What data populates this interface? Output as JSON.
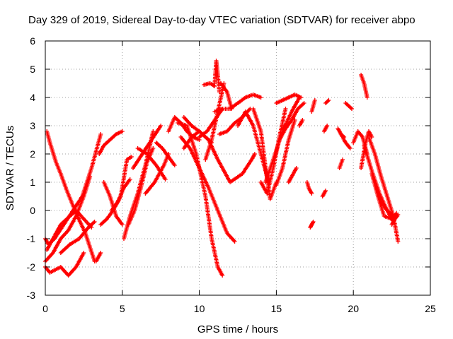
{
  "chart_data": {
    "type": "scatter",
    "title": "Day 329 of 2019, Sidereal Day-to-day VTEC variation (SDTVAR) for receiver abpo",
    "xlabel": "GPS time / hours",
    "ylabel": "SDTVAR / TECUs",
    "xlim": [
      0,
      25
    ],
    "ylim": [
      -3,
      6
    ],
    "xticks": [
      "0",
      "5",
      "10",
      "15",
      "20",
      "25"
    ],
    "yticks": [
      "-3",
      "-2",
      "-1",
      "0",
      "1",
      "2",
      "3",
      "4",
      "5",
      "6"
    ],
    "grid": true,
    "marker": "+",
    "color": "#ff0000",
    "tracks": [
      {
        "x": [
          0.1,
          0.3,
          0.7,
          1.0,
          1.4,
          2.0,
          2.6,
          3.2
        ],
        "y": [
          2.8,
          2.4,
          1.7,
          1.3,
          0.7,
          -0.1,
          -0.8,
          -1.8
        ]
      },
      {
        "x": [
          0.0,
          0.2,
          0.6,
          1.2,
          1.8,
          2.4,
          3.0,
          3.5,
          3.6
        ],
        "y": [
          -1.0,
          -1.2,
          -1.0,
          -0.5,
          0.0,
          0.5,
          1.5,
          2.5,
          2.7
        ]
      },
      {
        "x": [
          0.0,
          0.5,
          1.0,
          1.5,
          2.0,
          2.5,
          2.9
        ],
        "y": [
          -1.8,
          -1.5,
          -1.0,
          -0.7,
          -0.2,
          0.5,
          1.2
        ]
      },
      {
        "x": [
          0.0,
          0.3,
          1.0,
          1.5,
          2.0,
          2.5
        ],
        "y": [
          -2.0,
          -2.2,
          -2.0,
          -2.3,
          -2.0,
          -1.5
        ]
      },
      {
        "x": [
          0.1,
          0.5,
          1.0,
          2.0,
          3.0
        ],
        "y": [
          -1.4,
          -1.0,
          -0.5,
          0.0,
          -0.6
        ]
      },
      {
        "x": [
          3.3,
          3.6
        ],
        "y": [
          -1.8,
          -1.5
        ]
      },
      {
        "x": [
          1.0,
          1.6,
          2.2,
          2.8,
          3.2
        ],
        "y": [
          -1.5,
          -1.2,
          -1.0,
          -0.6,
          -0.4
        ]
      },
      {
        "x": [
          3.5,
          3.8,
          4.2,
          4.6,
          5.0
        ],
        "y": [
          2.0,
          2.3,
          2.5,
          2.7,
          2.8
        ]
      },
      {
        "x": [
          3.6,
          4.0,
          4.4,
          4.9,
          5.3,
          5.6
        ],
        "y": [
          -0.5,
          -0.3,
          0.0,
          0.5,
          1.8,
          1.9
        ]
      },
      {
        "x": [
          3.8,
          4.2,
          4.6,
          5.0
        ],
        "y": [
          1.0,
          0.5,
          -0.2,
          -0.5
        ]
      },
      {
        "x": [
          4.3,
          4.7,
          5.1,
          5.5
        ],
        "y": [
          0.0,
          0.3,
          0.8,
          1.1
        ]
      },
      {
        "x": [
          5.1,
          5.5,
          6.0,
          6.5,
          7.0
        ],
        "y": [
          -1.0,
          -0.2,
          0.6,
          1.6,
          2.8
        ]
      },
      {
        "x": [
          5.4,
          5.8,
          6.2,
          6.6,
          7.0
        ],
        "y": [
          -0.5,
          0.0,
          0.8,
          1.7,
          2.2
        ]
      },
      {
        "x": [
          5.7,
          6.3,
          6.9,
          7.5
        ],
        "y": [
          1.5,
          2.0,
          2.5,
          3.0
        ]
      },
      {
        "x": [
          6.0,
          6.6,
          7.2,
          7.8
        ],
        "y": [
          2.2,
          2.0,
          1.6,
          1.1
        ]
      },
      {
        "x": [
          6.5,
          7.1,
          7.7,
          8.0
        ],
        "y": [
          0.6,
          1.0,
          1.6,
          2.0
        ]
      },
      {
        "x": [
          7.2,
          7.6,
          8.0,
          8.4
        ],
        "y": [
          2.4,
          2.2,
          1.9,
          1.6
        ]
      },
      {
        "x": [
          8.0,
          8.4,
          8.8,
          9.2,
          9.6,
          10.0
        ],
        "y": [
          2.8,
          3.3,
          3.1,
          2.8,
          2.6,
          2.5
        ]
      },
      {
        "x": [
          8.6,
          9.2,
          9.8,
          10.4,
          10.8,
          11.2,
          11.5
        ],
        "y": [
          3.1,
          3.0,
          2.0,
          0.5,
          -1.0,
          -2.0,
          -2.3
        ]
      },
      {
        "x": [
          8.8,
          9.4,
          10.0,
          10.6,
          11.2,
          11.8,
          12.3
        ],
        "y": [
          2.6,
          2.2,
          1.5,
          0.8,
          0.0,
          -0.8,
          -1.1
        ]
      },
      {
        "x": [
          9.0,
          9.5,
          10.0,
          10.4,
          10.8
        ],
        "y": [
          3.3,
          3.0,
          2.8,
          2.6,
          2.4
        ]
      },
      {
        "x": [
          9.0,
          9.5,
          10.0,
          10.6,
          11.2,
          12.0,
          12.8,
          13.4,
          13.6
        ],
        "y": [
          2.2,
          2.6,
          2.8,
          2.5,
          1.8,
          1.0,
          1.3,
          1.8,
          2.0
        ]
      },
      {
        "x": [
          10.0,
          10.5,
          11.0,
          11.5
        ],
        "y": [
          2.6,
          2.8,
          3.2,
          3.6
        ]
      },
      {
        "x": [
          10.4,
          10.8,
          11.2,
          11.6
        ],
        "y": [
          1.8,
          2.5,
          3.5,
          4.5
        ]
      },
      {
        "x": [
          10.3,
          10.7,
          11.0
        ],
        "y": [
          4.45,
          4.5,
          4.4
        ]
      },
      {
        "x": [
          11.0,
          11.1,
          11.2,
          11.3
        ],
        "y": [
          4.5,
          5.3,
          4.8,
          4.2
        ]
      },
      {
        "x": [
          11.4,
          11.8,
          12.1
        ],
        "y": [
          4.5,
          4.2,
          3.6
        ]
      },
      {
        "x": [
          11.0,
          11.5,
          12.0,
          12.5,
          13.0,
          13.5,
          14.0
        ],
        "y": [
          3.5,
          3.6,
          3.6,
          3.8,
          4.0,
          4.1,
          4.0
        ]
      },
      {
        "x": [
          11.3,
          11.8,
          12.3,
          12.8,
          13.3
        ],
        "y": [
          2.7,
          2.8,
          3.1,
          3.3,
          3.6
        ]
      },
      {
        "x": [
          12.5,
          13.0,
          13.5,
          14.0,
          14.5
        ],
        "y": [
          3.0,
          3.5,
          3.0,
          2.0,
          1.0
        ]
      },
      {
        "x": [
          13.5,
          14.0,
          14.3,
          14.6,
          15.0
        ],
        "y": [
          3.6,
          2.8,
          1.5,
          0.4,
          1.0
        ]
      },
      {
        "x": [
          14.0,
          14.4,
          14.8,
          15.2,
          15.6
        ],
        "y": [
          1.0,
          0.6,
          1.5,
          2.6,
          3.6
        ]
      },
      {
        "x": [
          14.3,
          14.8,
          15.4,
          16.0,
          16.5
        ],
        "y": [
          1.0,
          1.8,
          2.8,
          3.5,
          4.0
        ]
      },
      {
        "x": [
          15.0,
          15.4,
          15.8,
          16.2,
          16.6
        ],
        "y": [
          3.8,
          3.9,
          4.0,
          4.1,
          4.0
        ]
      },
      {
        "x": [
          15.2,
          15.6,
          16.0,
          16.4,
          16.8
        ],
        "y": [
          2.5,
          2.9,
          3.2,
          3.6,
          3.8
        ]
      },
      {
        "x": [
          15.0,
          15.4,
          15.8,
          16.2
        ],
        "y": [
          0.9,
          1.5,
          2.5,
          3.2
        ]
      },
      {
        "x": [
          17.2,
          17.3,
          17.4
        ],
        "y": [
          -0.6,
          -0.5,
          -0.4
        ]
      },
      {
        "x": [
          17.3,
          17.4,
          17.5
        ],
        "y": [
          3.5,
          3.7,
          3.9
        ]
      },
      {
        "x": [
          17.0,
          17.1,
          17.3
        ],
        "y": [
          1.0,
          0.8,
          0.6
        ]
      },
      {
        "x": [
          18.0,
          18.2
        ],
        "y": [
          0.5,
          0.7
        ]
      },
      {
        "x": [
          18.1,
          18.3
        ],
        "y": [
          2.8,
          3.0
        ]
      },
      {
        "x": [
          18.2,
          18.4
        ],
        "y": [
          3.8,
          3.9
        ]
      },
      {
        "x": [
          19.0,
          19.2,
          19.4
        ],
        "y": [
          2.9,
          2.7,
          2.6
        ]
      },
      {
        "x": [
          19.2,
          19.5,
          19.8
        ],
        "y": [
          2.7,
          2.4,
          2.2
        ]
      },
      {
        "x": [
          19.1,
          19.3
        ],
        "y": [
          1.5,
          1.8
        ]
      },
      {
        "x": [
          19.5,
          19.7,
          19.9
        ],
        "y": [
          3.8,
          3.7,
          3.6
        ]
      },
      {
        "x": [
          20.0,
          20.3,
          20.6,
          20.9
        ],
        "y": [
          2.4,
          2.8,
          2.6,
          2.0
        ]
      },
      {
        "x": [
          20.5,
          20.7,
          20.9
        ],
        "y": [
          4.8,
          4.5,
          4.0
        ]
      },
      {
        "x": [
          20.5,
          20.8,
          21.0,
          21.2
        ],
        "y": [
          1.5,
          2.4,
          2.8,
          2.6
        ]
      },
      {
        "x": [
          21.0,
          21.4,
          21.8,
          22.2,
          22.6,
          22.9
        ],
        "y": [
          2.6,
          2.0,
          1.2,
          0.5,
          -0.2,
          -1.1
        ]
      },
      {
        "x": [
          20.7,
          21.2,
          21.7,
          22.2,
          22.6
        ],
        "y": [
          2.3,
          1.4,
          0.6,
          0.0,
          -0.4
        ]
      },
      {
        "x": [
          21.2,
          21.6,
          22.0,
          22.5,
          22.8
        ],
        "y": [
          1.3,
          0.5,
          -0.2,
          -0.3,
          -0.1
        ]
      },
      {
        "x": [
          21.5,
          21.8,
          22.2,
          22.6,
          22.9
        ],
        "y": [
          0.8,
          0.3,
          0.0,
          -0.2,
          -0.15
        ]
      },
      {
        "x": [
          22.5,
          22.7,
          22.85
        ],
        "y": [
          -0.5,
          -0.3,
          -0.2
        ]
      },
      {
        "x": [
          16.5,
          16.7
        ],
        "y": [
          3.0,
          3.2
        ]
      },
      {
        "x": [
          15.8,
          16.0,
          16.3
        ],
        "y": [
          1.0,
          1.2,
          1.5
        ]
      }
    ]
  }
}
